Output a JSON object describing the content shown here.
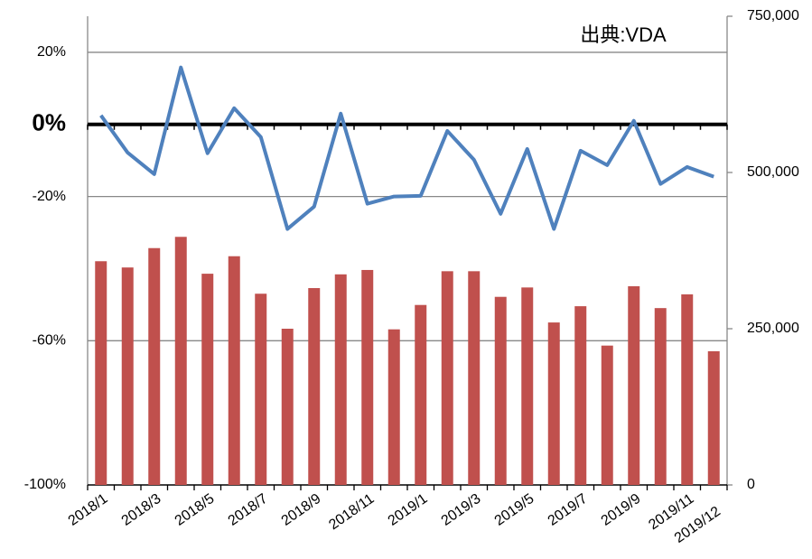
{
  "chart_data": {
    "type": "combo",
    "annotation": "出典:VDA",
    "categories": [
      "2018/1",
      null,
      "2018/3",
      null,
      "2018/5",
      null,
      "2018/7",
      null,
      "2018/9",
      null,
      "2018/11",
      null,
      "2019/1",
      null,
      "2019/3",
      null,
      "2019/5",
      null,
      "2019/7",
      null,
      "2019/9",
      null,
      "2019/11",
      "2019/12"
    ],
    "series": [
      {
        "type": "bar",
        "axis": "y2",
        "color": "#c0504d",
        "values": [
          358000,
          348000,
          379000,
          397000,
          338000,
          366000,
          306000,
          250000,
          315000,
          337000,
          344000,
          249000,
          288000,
          342000,
          342000,
          301000,
          316000,
          260000,
          286000,
          223000,
          318000,
          283000,
          305000,
          214000
        ]
      },
      {
        "type": "line",
        "color": "#4f81bd",
        "values": [
          2.5,
          -7.8,
          -13.8,
          15.8,
          -8,
          4.5,
          -3.5,
          -29,
          -22.8,
          3,
          -22,
          -20,
          -19.8,
          -1.8,
          -9.8,
          -24.8,
          -6.8,
          -29,
          -7.3,
          -11.3,
          1,
          -16.5,
          -11.8,
          -14.5
        ]
      }
    ],
    "ylim": [
      -100,
      30
    ],
    "yticks": [
      {
        "value": 20,
        "label": "20%"
      },
      {
        "value": 0,
        "label": "0%"
      },
      {
        "value": -20,
        "label": "-20%"
      },
      {
        "value": -60,
        "label": "-60%"
      },
      {
        "value": -100,
        "label": "-100%"
      }
    ],
    "y2lim": [
      0,
      750000
    ],
    "y2ticks": [
      0,
      {
        "value": 250000,
        "label": "250,000"
      },
      {
        "value": 500000,
        "label": "500,000"
      },
      {
        "value": 750000,
        "label": "750,000"
      }
    ],
    "grid": true,
    "zero_line": true
  }
}
